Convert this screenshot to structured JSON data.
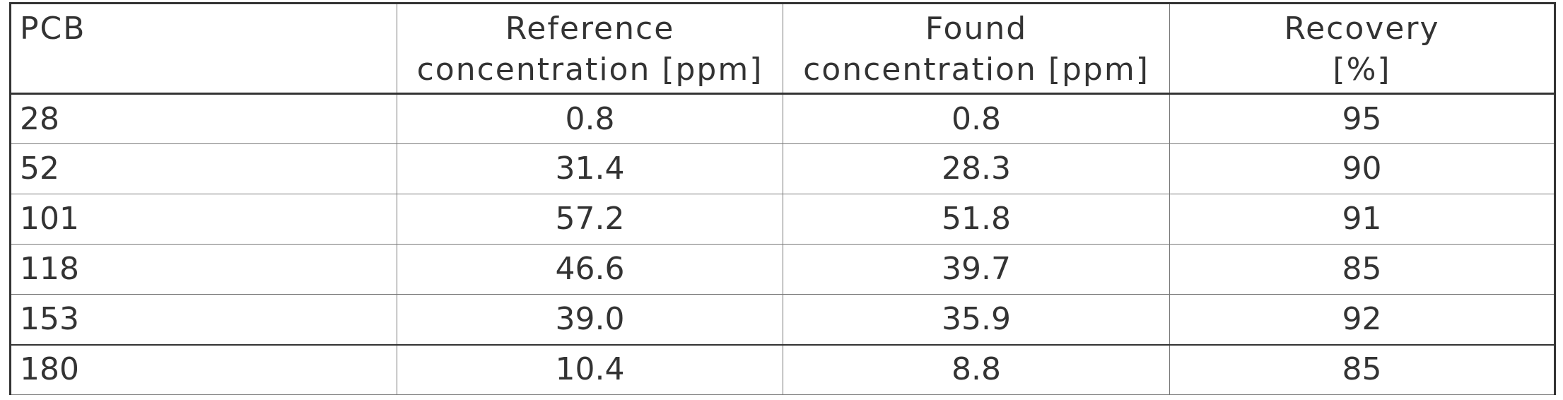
{
  "table": {
    "header": [
      "PCB",
      "Reference\nconcentration [ppm]",
      "Found\nconcentration [ppm]",
      "Recovery\n[%]"
    ],
    "rows": [
      [
        "28",
        "0.8",
        "0.8",
        "95"
      ],
      [
        "52",
        "31.4",
        "28.3",
        "90"
      ],
      [
        "101",
        "57.2",
        "51.8",
        "91"
      ],
      [
        "118",
        "46.6",
        "39.7",
        "85"
      ],
      [
        "153",
        "39.0",
        "35.9",
        "92"
      ],
      [
        "180",
        "10.4",
        "8.8",
        "85"
      ]
    ]
  }
}
